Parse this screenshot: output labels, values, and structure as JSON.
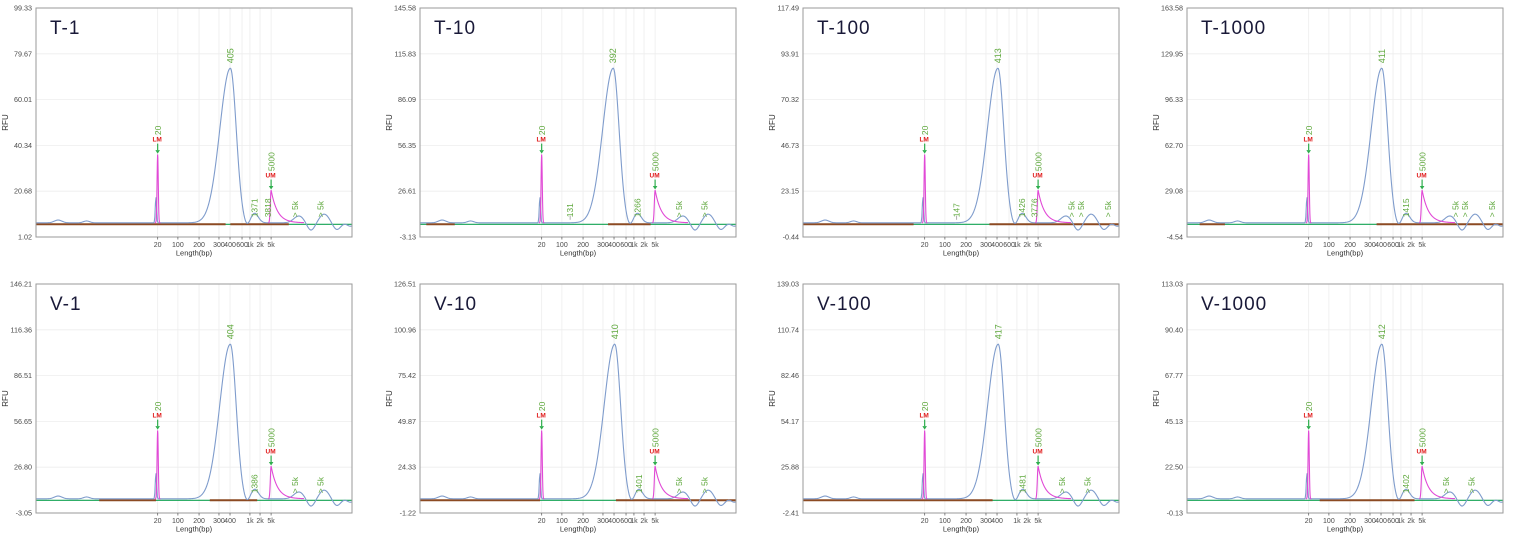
{
  "colors": {
    "trace_blue": "#7f9ccc",
    "marker_magenta": "#e149d6",
    "annotation_green": "#5fa83d",
    "marker_text_red": "#e01818",
    "baseline_green": "#12a352",
    "region_brown": "#8c4a22",
    "axis_text": "#4a4a4a",
    "title_text": "#191938",
    "grid_line": "#ededed",
    "plot_border": "#9a9a9a",
    "minor_tick_gray": "#999999"
  },
  "chart_data": [
    {
      "type": "line",
      "title": "T-1",
      "xlabel": "Length(bp)",
      "ylabel": "RFU",
      "y_ticks": [
        "99.33",
        "79.67",
        "60.01",
        "40.34",
        "20.68",
        "1.02"
      ],
      "x_ticks": [
        "20",
        "100",
        "200",
        "300",
        "400",
        "600",
        "1k",
        "2k",
        "5k"
      ],
      "lower_marker": {
        "label": "LM",
        "size_bp": "20"
      },
      "upper_marker": {
        "label": "UM",
        "size_bp": "5000"
      },
      "main_peak_bp": "405",
      "minor_peak_bps": [
        "1371",
        "3818"
      ],
      "over_range_labels": [
        "> 5k",
        "> 5k"
      ]
    },
    {
      "type": "line",
      "title": "T-10",
      "xlabel": "Length(bp)",
      "ylabel": "RFU",
      "y_ticks": [
        "145.58",
        "115.83",
        "86.09",
        "56.35",
        "26.61",
        "-3.13"
      ],
      "x_ticks": [
        "20",
        "100",
        "200",
        "300",
        "400",
        "600",
        "1k",
        "2k",
        "5k"
      ],
      "lower_marker": {
        "label": "LM",
        "size_bp": "20"
      },
      "upper_marker": {
        "label": "UM",
        "size_bp": "5000"
      },
      "main_peak_bp": "392",
      "minor_peak_bps": [
        "131",
        "1266"
      ],
      "over_range_labels": [
        "> 5k",
        "> 5k"
      ]
    },
    {
      "type": "line",
      "title": "T-100",
      "xlabel": "Length(bp)",
      "ylabel": "RFU",
      "y_ticks": [
        "117.49",
        "93.91",
        "70.32",
        "46.73",
        "23.15",
        "-0.44"
      ],
      "x_ticks": [
        "20",
        "100",
        "200",
        "300",
        "400",
        "600",
        "1k",
        "2k",
        "5k"
      ],
      "lower_marker": {
        "label": "LM",
        "size_bp": "20"
      },
      "upper_marker": {
        "label": "UM",
        "size_bp": "5000"
      },
      "main_peak_bp": "413",
      "minor_peak_bps": [
        "147",
        "1426",
        "3776"
      ],
      "over_range_labels": [
        "> 5k",
        "> 5k",
        "> 5k"
      ]
    },
    {
      "type": "line",
      "title": "T-1000",
      "xlabel": "Length(bp)",
      "ylabel": "RFU",
      "y_ticks": [
        "163.58",
        "129.95",
        "96.33",
        "62.70",
        "29.08",
        "-4.54"
      ],
      "x_ticks": [
        "20",
        "100",
        "200",
        "300",
        "400",
        "600",
        "1k",
        "2k",
        "5k"
      ],
      "lower_marker": {
        "label": "LM",
        "size_bp": "20"
      },
      "upper_marker": {
        "label": "UM",
        "size_bp": "5000"
      },
      "main_peak_bp": "411",
      "minor_peak_bps": [
        "1415"
      ],
      "over_range_labels": [
        "> 5k",
        "> 5k",
        "> 5k"
      ]
    },
    {
      "type": "line",
      "title": "V-1",
      "xlabel": "Length(bp)",
      "ylabel": "RFU",
      "y_ticks": [
        "146.21",
        "116.36",
        "86.51",
        "56.65",
        "26.80",
        "-3.05"
      ],
      "x_ticks": [
        "20",
        "100",
        "200",
        "300",
        "400",
        "1k",
        "2k",
        "5k"
      ],
      "lower_marker": {
        "label": "LM",
        "size_bp": "20"
      },
      "upper_marker": {
        "label": "UM",
        "size_bp": "5000"
      },
      "main_peak_bp": "404",
      "minor_peak_bps": [
        "1386"
      ],
      "over_range_labels": [
        "> 5k",
        "> 5k"
      ]
    },
    {
      "type": "line",
      "title": "V-10",
      "xlabel": "Length(bp)",
      "ylabel": "RFU",
      "y_ticks": [
        "126.51",
        "100.96",
        "75.42",
        "49.87",
        "24.33",
        "-1.22"
      ],
      "x_ticks": [
        "20",
        "100",
        "200",
        "300",
        "400",
        "600",
        "1k",
        "2k",
        "5k"
      ],
      "lower_marker": {
        "label": "LM",
        "size_bp": "20"
      },
      "upper_marker": {
        "label": "UM",
        "size_bp": "5000"
      },
      "main_peak_bp": "410",
      "minor_peak_bps": [
        "1401"
      ],
      "over_range_labels": [
        "> 5k",
        "> 5k"
      ]
    },
    {
      "type": "line",
      "title": "V-100",
      "xlabel": "Length(bp)",
      "ylabel": "RFU",
      "y_ticks": [
        "139.03",
        "110.74",
        "82.46",
        "54.17",
        "25.88",
        "-2.41"
      ],
      "x_ticks": [
        "20",
        "100",
        "200",
        "300",
        "400",
        "1k",
        "2k",
        "5k"
      ],
      "lower_marker": {
        "label": "LM",
        "size_bp": "20"
      },
      "upper_marker": {
        "label": "UM",
        "size_bp": "5000"
      },
      "main_peak_bp": "417",
      "minor_peak_bps": [
        "1481"
      ],
      "over_range_labels": [
        "> 5k",
        "> 5k"
      ]
    },
    {
      "type": "line",
      "title": "V-1000",
      "xlabel": "Length(bp)",
      "ylabel": "RFU",
      "y_ticks": [
        "113.03",
        "90.40",
        "67.77",
        "45.13",
        "22.50",
        "-0.13"
      ],
      "x_ticks": [
        "20",
        "100",
        "200",
        "300",
        "400",
        "600",
        "1k",
        "2k",
        "5k"
      ],
      "lower_marker": {
        "label": "LM",
        "size_bp": "20"
      },
      "upper_marker": {
        "label": "UM",
        "size_bp": "5000"
      },
      "main_peak_bp": "412",
      "minor_peak_bps": [
        "1402"
      ],
      "over_range_labels": [
        "> 5k",
        "> 5k"
      ]
    }
  ]
}
